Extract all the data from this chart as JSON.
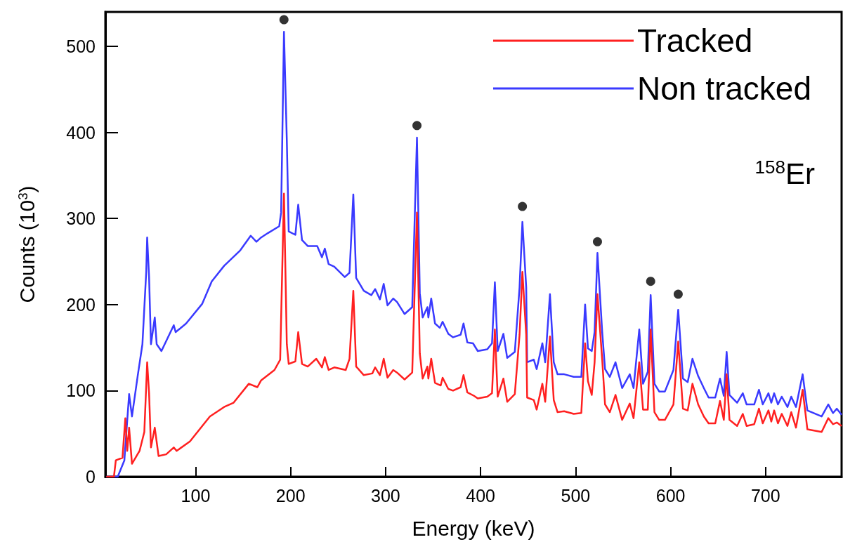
{
  "chart_data": {
    "type": "line",
    "xlabel": "Energy (keV)",
    "ylabel": "Counts (10$^{3}$)",
    "xlim": [
      5,
      780
    ],
    "ylim": [
      0,
      540
    ],
    "xticks": [
      100,
      200,
      300,
      400,
      500,
      600,
      700
    ],
    "yticks": [
      0,
      100,
      200,
      300,
      400,
      500
    ],
    "grid": false,
    "legend": "top right",
    "line_style": "solid",
    "annotations": [
      "$^{158}$Er"
    ],
    "series": [
      {
        "name": "Tracked",
        "color": "#ff2020",
        "marker": "none",
        "x": [
          6,
          14,
          16,
          23,
          26,
          28,
          30,
          33,
          41,
          46,
          49,
          51,
          53,
          57,
          61,
          69,
          77,
          80,
          94,
          107,
          115,
          130,
          140,
          156,
          165,
          169,
          183,
          189,
          193,
          196,
          198,
          205,
          208,
          212,
          218,
          227,
          233,
          236,
          240,
          246,
          258,
          262,
          266,
          269,
          277,
          286,
          289,
          294,
          298,
          302,
          308,
          312,
          320,
          328,
          333,
          336,
          339,
          344,
          345,
          348,
          352,
          358,
          360,
          366,
          371,
          379,
          382,
          386,
          393,
          397,
          407,
          412,
          415,
          418,
          424,
          428,
          436,
          441,
          444,
          448,
          449,
          456,
          459,
          465,
          468,
          473,
          477,
          481,
          488,
          498,
          506,
          510,
          513,
          517,
          520,
          523,
          528,
          531,
          536,
          542,
          549,
          557,
          561,
          567,
          571,
          576,
          579,
          583,
          588,
          594,
          603,
          608,
          613,
          618,
          623,
          629,
          635,
          640,
          647,
          652,
          656,
          659,
          662,
          670,
          676,
          680,
          688,
          693,
          697,
          703,
          706,
          709,
          713,
          717,
          723,
          727,
          732,
          739,
          744,
          759,
          766,
          771,
          775,
          780
        ],
        "values": [
          0,
          0,
          19,
          22,
          68,
          30,
          57,
          15,
          30,
          52,
          133,
          97,
          34,
          57,
          24,
          26,
          34,
          30,
          41,
          59,
          70,
          81,
          86,
          108,
          104,
          112,
          124,
          136,
          329,
          154,
          131,
          134,
          168,
          131,
          128,
          137,
          127,
          139,
          124,
          127,
          124,
          137,
          216,
          128,
          118,
          120,
          127,
          118,
          137,
          115,
          124,
          121,
          113,
          121,
          307,
          143,
          114,
          128,
          114,
          137,
          109,
          106,
          115,
          102,
          100,
          104,
          118,
          98,
          94,
          91,
          93,
          97,
          171,
          93,
          114,
          87,
          96,
          165,
          238,
          165,
          92,
          89,
          78,
          108,
          87,
          163,
          89,
          75,
          76,
          73,
          74,
          155,
          111,
          95,
          133,
          212,
          136,
          84,
          75,
          95,
          66,
          85,
          68,
          133,
          78,
          78,
          171,
          75,
          66,
          66,
          84,
          157,
          79,
          77,
          108,
          84,
          70,
          62,
          62,
          88,
          66,
          119,
          66,
          59,
          73,
          59,
          61,
          79,
          62,
          77,
          64,
          77,
          62,
          73,
          59,
          75,
          57,
          101,
          55,
          52,
          68,
          61,
          63,
          59
        ]
      },
      {
        "name": "Non tracked",
        "color": "#3a3aff",
        "marker": "none",
        "x": [
          6,
          18,
          25,
          30,
          33,
          39,
          44,
          48,
          49,
          51,
          53,
          57,
          59,
          64,
          77,
          79,
          90,
          107,
          117,
          130,
          147,
          158,
          164,
          169,
          176,
          188,
          190,
          193,
          196,
          198,
          205,
          208,
          212,
          218,
          228,
          233,
          236,
          240,
          246,
          257,
          262,
          266,
          269,
          277,
          285,
          289,
          294,
          298,
          302,
          308,
          312,
          320,
          328,
          333,
          336,
          339,
          344,
          345,
          348,
          352,
          357,
          360,
          366,
          371,
          379,
          382,
          386,
          392,
          397,
          407,
          412,
          415,
          418,
          424,
          428,
          436,
          441,
          444,
          448,
          449,
          456,
          459,
          465,
          468,
          473,
          477,
          481,
          488,
          498,
          506,
          510,
          513,
          517,
          520,
          523,
          528,
          531,
          536,
          542,
          549,
          557,
          561,
          567,
          571,
          576,
          579,
          583,
          588,
          594,
          603,
          608,
          613,
          618,
          623,
          629,
          635,
          640,
          647,
          652,
          656,
          659,
          662,
          670,
          676,
          680,
          688,
          693,
          697,
          703,
          706,
          709,
          713,
          717,
          723,
          727,
          732,
          739,
          744,
          759,
          766,
          771,
          775,
          780
        ],
        "values": [
          0,
          0,
          19,
          96,
          70,
          117,
          154,
          238,
          278,
          232,
          154,
          185,
          154,
          146,
          176,
          168,
          178,
          201,
          227,
          245,
          263,
          280,
          273,
          278,
          283,
          291,
          307,
          517,
          391,
          285,
          281,
          316,
          275,
          268,
          268,
          255,
          265,
          247,
          244,
          232,
          237,
          328,
          231,
          216,
          211,
          218,
          206,
          224,
          199,
          207,
          203,
          189,
          197,
          394,
          213,
          185,
          197,
          185,
          207,
          178,
          173,
          180,
          166,
          162,
          165,
          178,
          156,
          155,
          146,
          148,
          155,
          226,
          146,
          166,
          138,
          145,
          220,
          296,
          220,
          133,
          136,
          125,
          155,
          133,
          212,
          133,
          119,
          119,
          116,
          116,
          200,
          149,
          146,
          168,
          260,
          168,
          125,
          116,
          133,
          103,
          119,
          103,
          171,
          108,
          122,
          211,
          108,
          99,
          99,
          124,
          194,
          114,
          110,
          137,
          117,
          103,
          92,
          92,
          114,
          94,
          145,
          95,
          86,
          97,
          84,
          84,
          101,
          84,
          97,
          86,
          97,
          84,
          93,
          81,
          93,
          81,
          119,
          77,
          70,
          84,
          74,
          79,
          72
        ]
      },
      {
        "type": "scatter",
        "color": "#000000",
        "marker": "circle",
        "x": [
          193,
          333,
          444,
          523,
          579,
          608
        ],
        "values": [
          531,
          408,
          314,
          273,
          227,
          212
        ]
      }
    ]
  }
}
